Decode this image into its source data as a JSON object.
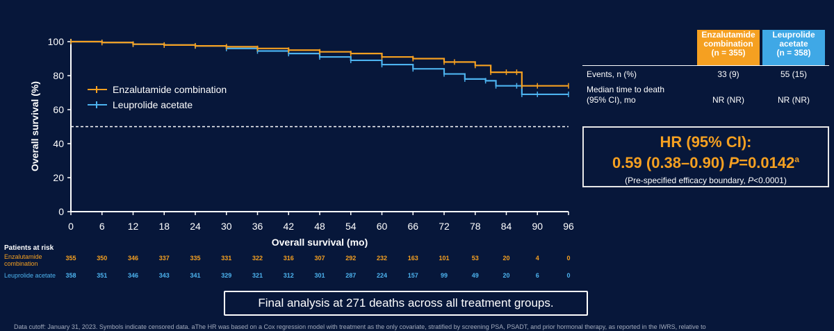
{
  "chart_data": {
    "type": "line",
    "xlabel": "Overall survival (mo)",
    "ylabel": "Overall survival (%)",
    "xlim": [
      0,
      96
    ],
    "ylim": [
      0,
      100
    ],
    "xticks": [
      0,
      6,
      12,
      18,
      24,
      30,
      36,
      42,
      48,
      54,
      60,
      66,
      72,
      78,
      84,
      90,
      96
    ],
    "yticks": [
      0,
      20,
      40,
      60,
      80,
      100
    ],
    "reference_line_y": 50,
    "legend_position": "upper-left",
    "series": [
      {
        "name": "Enzalutamide combination",
        "color": "#f5a021",
        "x": [
          0,
          6,
          12,
          18,
          24,
          30,
          36,
          42,
          48,
          54,
          60,
          66,
          72,
          74,
          78,
          81,
          84,
          86,
          87,
          90,
          96
        ],
        "y": [
          100,
          99.5,
          98.5,
          98,
          97.5,
          97,
          96,
          95,
          94,
          93,
          91,
          90,
          88,
          88,
          86,
          82,
          82,
          82,
          74,
          74,
          74
        ]
      },
      {
        "name": "Leuprolide acetate",
        "color": "#4db3ef",
        "x": [
          0,
          6,
          12,
          18,
          24,
          30,
          36,
          42,
          48,
          54,
          60,
          66,
          72,
          76,
          80,
          82,
          86,
          87,
          90,
          96
        ],
        "y": [
          100,
          99.5,
          98.5,
          98,
          97.5,
          96,
          94.5,
          93,
          91,
          89,
          86.5,
          84,
          81,
          78,
          77,
          74,
          74,
          69,
          69,
          69
        ]
      }
    ]
  },
  "legend": {
    "enz": "Enzalutamide combination",
    "leu": "Leuprolide acetate"
  },
  "stats_table": {
    "col_enz": [
      "Enzalutamide",
      "combination",
      "(n = 355)"
    ],
    "col_leu": [
      "Leuprolide",
      "acetate",
      "(n = 358)"
    ],
    "row_events_label": "Events, n (%)",
    "row_events_enz": "33 (9)",
    "row_events_leu": "55 (15)",
    "row_median_label_1": "Median time to death",
    "row_median_label_2": "(95% CI), mo",
    "row_median_enz": "NR (NR)",
    "row_median_leu": "NR (NR)"
  },
  "hr_box": {
    "title": "HR (95% CI):",
    "value": "0.59 (0.38–0.90) ",
    "p_label": "P",
    "p_value": "=0.0142",
    "superscript": "a",
    "note_prefix": "(Pre-specified efficacy boundary, ",
    "note_p": "P",
    "note_suffix": "<0.0001)"
  },
  "risk_table": {
    "title": "Patients at risk",
    "enz_label_1": "Enzalutamide",
    "enz_label_2": "combination",
    "leu_label": "Leuprolide acetate",
    "enz": [
      "355",
      "350",
      "346",
      "337",
      "335",
      "331",
      "322",
      "316",
      "307",
      "292",
      "232",
      "163",
      "101",
      "53",
      "20",
      "4",
      "0"
    ],
    "leu": [
      "358",
      "351",
      "346",
      "343",
      "341",
      "329",
      "321",
      "312",
      "301",
      "287",
      "224",
      "157",
      "99",
      "49",
      "20",
      "6",
      "0"
    ]
  },
  "final_note": "Final analysis at 271 deaths across all treatment groups.",
  "footnote": "Data cutoff: January 31, 2023. Symbols indicate censored data. aThe HR was based on a Cox regression model with treatment as the only covariate, stratified by screening PSA, PSADT, and prior hormonal therapy, as reported in the IWRS, relative to"
}
